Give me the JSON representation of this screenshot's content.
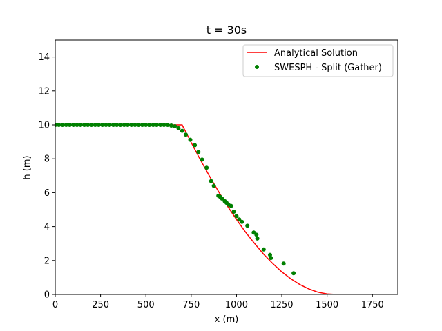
{
  "chart_data": {
    "type": "line",
    "title": "t = 30s",
    "xlabel": "x (m)",
    "ylabel": "h (m)",
    "xlim": [
      0,
      1890
    ],
    "ylim": [
      0,
      15
    ],
    "xticks": [
      0,
      250,
      500,
      750,
      1000,
      1250,
      1500,
      1750
    ],
    "yticks": [
      0,
      2,
      4,
      6,
      8,
      10,
      12,
      14
    ],
    "grid": false,
    "legend_position": "top-right",
    "series": [
      {
        "name": "Analytical Solution",
        "kind": "line",
        "color": "#ff0000",
        "x": [
          0,
          700,
          750,
          800,
          850,
          900,
          950,
          1000,
          1050,
          1100,
          1150,
          1200,
          1250,
          1300,
          1350,
          1400,
          1450,
          1500,
          1550,
          1575
        ],
        "y": [
          10.0,
          10.0,
          8.96,
          7.95,
          6.99,
          6.08,
          5.21,
          4.42,
          3.67,
          3.0,
          2.37,
          1.82,
          1.33,
          0.92,
          0.58,
          0.32,
          0.13,
          0.03,
          0.0,
          0.0
        ]
      },
      {
        "name": "SWESPH - Split (Gather)",
        "kind": "scatter",
        "color": "#008000",
        "x": [
          0,
          20,
          40,
          60,
          80,
          100,
          120,
          140,
          160,
          180,
          200,
          220,
          240,
          260,
          280,
          300,
          320,
          340,
          360,
          380,
          400,
          420,
          440,
          460,
          480,
          500,
          520,
          540,
          560,
          580,
          600,
          620,
          640,
          660,
          680,
          700,
          720,
          745,
          770,
          790,
          810,
          835,
          860,
          875,
          900,
          910,
          920,
          935,
          945,
          955,
          970,
          985,
          1000,
          1015,
          1030,
          1060,
          1095,
          1110,
          1115,
          1150,
          1185,
          1190,
          1260,
          1315
        ],
        "y": [
          10.0,
          10.0,
          10.0,
          10.0,
          10.0,
          10.0,
          10.0,
          10.0,
          10.0,
          10.0,
          10.0,
          10.0,
          10.0,
          10.0,
          10.0,
          10.0,
          10.0,
          10.0,
          10.0,
          10.0,
          10.0,
          10.0,
          10.0,
          10.0,
          10.0,
          10.0,
          10.0,
          10.0,
          10.0,
          10.0,
          10.0,
          10.0,
          9.96,
          9.92,
          9.8,
          9.65,
          9.42,
          9.12,
          8.8,
          8.4,
          7.95,
          7.47,
          6.68,
          6.4,
          5.82,
          5.75,
          5.65,
          5.5,
          5.4,
          5.3,
          5.22,
          4.88,
          4.62,
          4.42,
          4.28,
          4.05,
          3.65,
          3.52,
          3.3,
          2.65,
          2.33,
          2.15,
          1.82,
          1.25
        ]
      }
    ]
  }
}
